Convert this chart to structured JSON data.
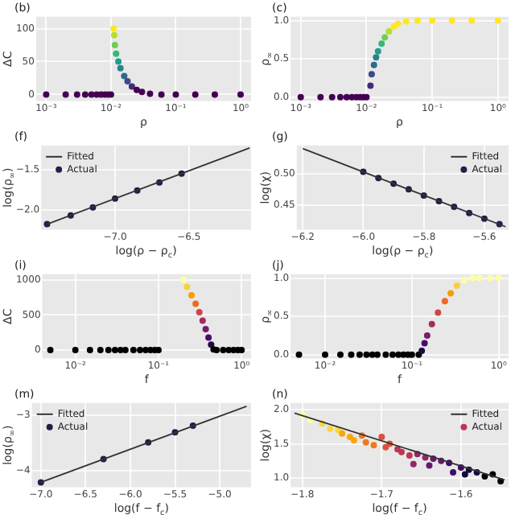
{
  "chart_data": [
    {
      "type": "scatter",
      "title": "(b)",
      "xlabel": "ρ",
      "ylabel": "ΔC",
      "log": "x",
      "grid": true,
      "marker": "circle",
      "xlim": [
        0.0007,
        1.45
      ],
      "xticks": [
        {
          "value": 0.001,
          "label": "10⁻³"
        },
        {
          "value": 0.01,
          "label": "10⁻²"
        },
        {
          "value": 0.1,
          "label": "10⁻¹"
        },
        {
          "value": 1,
          "label": "10⁰"
        }
      ],
      "ylim": [
        -10,
        118
      ],
      "yticks": [
        0,
        50,
        100
      ],
      "x": [
        0.001,
        0.002,
        0.003,
        0.004,
        0.005,
        0.006,
        0.007,
        0.008,
        0.009,
        0.01,
        0.011,
        0.0112,
        0.0115,
        0.012,
        0.013,
        0.014,
        0.016,
        0.018,
        0.021,
        0.025,
        0.03,
        0.04,
        0.06,
        0.1,
        0.2,
        0.4,
        1
      ],
      "values": [
        0,
        0,
        0,
        0,
        0,
        0,
        0,
        0,
        0,
        0,
        100,
        90,
        75,
        62,
        50,
        40,
        28,
        20,
        12,
        7,
        4,
        1,
        0,
        0,
        0,
        0,
        0
      ],
      "colors": [
        "#440154",
        "#440154",
        "#440154",
        "#440154",
        "#440154",
        "#440154",
        "#440154",
        "#440154",
        "#440154",
        "#440154",
        "#fde725",
        "#b5de2b",
        "#6ece58",
        "#35b779",
        "#1f9e89",
        "#26828e",
        "#31688e",
        "#3e4989",
        "#482878",
        "#440154",
        "#440154",
        "#440154",
        "#440154",
        "#440154",
        "#440154",
        "#440154",
        "#440154"
      ]
    },
    {
      "type": "scatter",
      "title": "(c)",
      "xlabel": "ρ",
      "ylabel": "ρ$_{∞}$",
      "log": "x",
      "grid": true,
      "marker": "circle",
      "xlim": [
        0.0007,
        1.45
      ],
      "xticks": [
        {
          "value": 0.001,
          "label": "10⁻³"
        },
        {
          "value": 0.01,
          "label": "10⁻²"
        },
        {
          "value": 0.1,
          "label": "10⁻¹"
        },
        {
          "value": 1,
          "label": "10⁰"
        }
      ],
      "ylim": [
        -0.05,
        1.05
      ],
      "yticks": [
        {
          "value": 0,
          "label": "0.0"
        },
        {
          "value": 0.5,
          "label": "0.5"
        },
        {
          "value": 1,
          "label": "1.0"
        }
      ],
      "x": [
        0.001,
        0.002,
        0.003,
        0.004,
        0.005,
        0.006,
        0.007,
        0.008,
        0.009,
        0.01,
        0.0115,
        0.012,
        0.013,
        0.014,
        0.015,
        0.017,
        0.019,
        0.022,
        0.026,
        0.03,
        0.04,
        0.06,
        0.1,
        0.2,
        0.4,
        1
      ],
      "values": [
        0,
        0,
        0,
        0,
        0,
        0,
        0,
        0,
        0,
        0,
        0.15,
        0.3,
        0.42,
        0.52,
        0.6,
        0.7,
        0.78,
        0.86,
        0.92,
        0.96,
        0.99,
        1,
        1,
        1,
        1,
        1
      ],
      "colors": [
        "#440154",
        "#440154",
        "#440154",
        "#440154",
        "#440154",
        "#440154",
        "#440154",
        "#440154",
        "#440154",
        "#440154",
        "#482878",
        "#3e4989",
        "#31688e",
        "#26828e",
        "#1f9e89",
        "#35b779",
        "#6ece58",
        "#b5de2b",
        "#fde725",
        "#fde725",
        "#fde725",
        "#fde725",
        "#fde725",
        "#fde725",
        "#fde725",
        "#fde725"
      ]
    },
    {
      "type": "scatter",
      "title": "(f)",
      "xlabel": "log(ρ − ρ$_{c}$)",
      "ylabel": "log(ρ$_{∞}$)",
      "grid": true,
      "legend": "top left",
      "marker": "circle",
      "xlim": [
        -7.5,
        -6.08
      ],
      "xticks": [
        {
          "value": -7,
          "label": "−7.0"
        },
        {
          "value": -6.5,
          "label": "−6.5"
        }
      ],
      "ylim": [
        -2.25,
        -1.2
      ],
      "yticks": [
        {
          "value": -2,
          "label": "−2.0"
        },
        {
          "value": -1.5,
          "label": "−1.5"
        }
      ],
      "series": [
        {
          "name": "Fitted",
          "type": "line",
          "marker": "none",
          "color": "#333333",
          "x": [
            -7.46,
            -6.09
          ],
          "values": [
            -2.18,
            -1.23
          ]
        },
        {
          "name": "Actual",
          "type": "scatter",
          "color": "#2b1a4a",
          "x": [
            -7.46,
            -7.3,
            -7.15,
            -7.0,
            -6.85,
            -6.7,
            -6.55
          ],
          "values": [
            -2.18,
            -2.07,
            -1.97,
            -1.86,
            -1.76,
            -1.66,
            -1.55
          ]
        }
      ]
    },
    {
      "type": "scatter",
      "title": "(g)",
      "xlabel": "log(ρ − ρ$_{c}$)",
      "ylabel": "log(χ)",
      "grid": true,
      "legend": "top right",
      "marker": "circle",
      "xlim": [
        -6.22,
        -5.52
      ],
      "xticks": [
        {
          "value": -6.2,
          "label": "−6.2"
        },
        {
          "value": -6,
          "label": "−6.0"
        },
        {
          "value": -5.8,
          "label": "−5.8"
        },
        {
          "value": -5.6,
          "label": "−5.6"
        }
      ],
      "ylim": [
        0.41,
        0.545
      ],
      "yticks": [
        {
          "value": 0.45,
          "label": "0.45"
        },
        {
          "value": 0.5,
          "label": "0.50"
        }
      ],
      "series": [
        {
          "name": "Fitted",
          "type": "line",
          "marker": "none",
          "color": "#333333",
          "x": [
            -6.2,
            -5.53
          ],
          "values": [
            0.54,
            0.415
          ]
        },
        {
          "name": "Actual",
          "type": "scatter",
          "color": "#2b1a4a",
          "x": [
            -6.0,
            -5.95,
            -5.9,
            -5.85,
            -5.8,
            -5.75,
            -5.7,
            -5.65,
            -5.6,
            -5.55
          ],
          "values": [
            0.503,
            0.493,
            0.484,
            0.475,
            0.465,
            0.456,
            0.447,
            0.437,
            0.428,
            0.419
          ]
        }
      ]
    },
    {
      "type": "scatter",
      "title": "(i)",
      "xlabel": "f",
      "ylabel": "ΔC",
      "log": "x",
      "grid": true,
      "marker": "circle",
      "xlim": [
        0.004,
        1.3
      ],
      "xticks": [
        {
          "value": 0.01,
          "label": "10⁻²"
        },
        {
          "value": 0.1,
          "label": "10⁻¹"
        },
        {
          "value": 1,
          "label": "10⁰"
        }
      ],
      "ylim": [
        -120,
        1080
      ],
      "yticks": [
        0,
        500,
        1000
      ],
      "x": [
        0.005,
        0.01,
        0.015,
        0.02,
        0.025,
        0.03,
        0.035,
        0.04,
        0.05,
        0.06,
        0.07,
        0.08,
        0.09,
        0.1,
        0.2,
        0.22,
        0.25,
        0.28,
        0.31,
        0.34,
        0.37,
        0.4,
        0.43,
        0.46,
        0.5,
        0.6,
        0.7,
        0.8,
        0.9,
        1
      ],
      "values": [
        0,
        0,
        0,
        0,
        0,
        0,
        0,
        0,
        0,
        0,
        0,
        0,
        0,
        0,
        1000,
        900,
        780,
        660,
        540,
        420,
        300,
        180,
        80,
        10,
        0,
        0,
        0,
        0,
        0,
        0
      ],
      "colors": [
        "#000004",
        "#000004",
        "#000004",
        "#000004",
        "#000004",
        "#000004",
        "#000004",
        "#000004",
        "#000004",
        "#000004",
        "#000004",
        "#000004",
        "#000004",
        "#000004",
        "#fcffa4",
        "#f7d13d",
        "#fb9b06",
        "#ed6925",
        "#cf4446",
        "#a52c60",
        "#781c6d",
        "#4a0c6b",
        "#1b0c41",
        "#000004",
        "#000004",
        "#000004",
        "#000004",
        "#000004",
        "#000004",
        "#000004"
      ]
    },
    {
      "type": "scatter",
      "title": "(j)",
      "xlabel": "f",
      "ylabel": "ρ$_{∞}$",
      "log": "x",
      "grid": true,
      "marker": "circle",
      "xlim": [
        0.004,
        1.3
      ],
      "xticks": [
        {
          "value": 0.01,
          "label": "10⁻²"
        },
        {
          "value": 0.1,
          "label": "10⁻¹"
        },
        {
          "value": 1,
          "label": "10⁰"
        }
      ],
      "ylim": [
        -0.05,
        1.05
      ],
      "yticks": [
        {
          "value": 0,
          "label": "0.0"
        },
        {
          "value": 0.5,
          "label": "0.5"
        },
        {
          "value": 1,
          "label": "1.0"
        }
      ],
      "x": [
        0.005,
        0.01,
        0.015,
        0.02,
        0.025,
        0.03,
        0.035,
        0.04,
        0.05,
        0.06,
        0.07,
        0.08,
        0.09,
        0.1,
        0.12,
        0.13,
        0.14,
        0.15,
        0.17,
        0.2,
        0.24,
        0.28,
        0.33,
        0.4,
        0.5,
        0.6,
        0.8,
        1
      ],
      "values": [
        0,
        0,
        0,
        0,
        0,
        0,
        0,
        0,
        0,
        0,
        0,
        0,
        0,
        0,
        0,
        0.05,
        0.15,
        0.25,
        0.4,
        0.55,
        0.7,
        0.8,
        0.9,
        0.97,
        1,
        1,
        1,
        1
      ],
      "colors": [
        "#000004",
        "#000004",
        "#000004",
        "#000004",
        "#000004",
        "#000004",
        "#000004",
        "#000004",
        "#000004",
        "#000004",
        "#000004",
        "#000004",
        "#000004",
        "#000004",
        "#000004",
        "#1b0c41",
        "#4a0c6b",
        "#781c6d",
        "#a52c60",
        "#cf4446",
        "#ed6925",
        "#fb9b06",
        "#f7d13d",
        "#fcffa4",
        "#fcffa4",
        "#fcffa4",
        "#fcffa4",
        "#fcffa4"
      ]
    },
    {
      "type": "scatter",
      "title": "(m)",
      "xlabel": "log(f − f$_{c}$)",
      "ylabel": "log(ρ$_{∞}$)",
      "grid": true,
      "legend": "top left",
      "marker": "circle",
      "xlim": [
        -7.1,
        -4.65
      ],
      "xticks": [
        {
          "value": -7,
          "label": "−7.0"
        },
        {
          "value": -6.5,
          "label": "−6.5"
        },
        {
          "value": -6,
          "label": "−6.0"
        },
        {
          "value": -5.5,
          "label": "−5.5"
        },
        {
          "value": -5,
          "label": "−5.0"
        }
      ],
      "ylim": [
        -4.3,
        -2.78
      ],
      "yticks": [
        {
          "value": -4,
          "label": "−4"
        },
        {
          "value": -3,
          "label": "−3"
        }
      ],
      "series": [
        {
          "name": "Fitted",
          "type": "line",
          "marker": "none",
          "color": "#333333",
          "x": [
            -7.0,
            -4.7
          ],
          "values": [
            -4.21,
            -2.84
          ]
        },
        {
          "name": "Actual",
          "type": "scatter",
          "color": "#2b1a4a",
          "x": [
            -7.0,
            -6.3,
            -5.8,
            -5.5,
            -5.3
          ],
          "values": [
            -4.21,
            -3.79,
            -3.49,
            -3.31,
            -3.19
          ]
        }
      ]
    },
    {
      "type": "scatter",
      "title": "(n)",
      "xlabel": "log(f − f$_{c}$)",
      "ylabel": "log(χ)",
      "grid": true,
      "legend": "top right",
      "marker": "circle",
      "xlim": [
        -1.815,
        -1.54
      ],
      "xticks": [
        {
          "value": -1.8,
          "label": "−1.8"
        },
        {
          "value": -1.7,
          "label": "−1.7"
        },
        {
          "value": -1.6,
          "label": "−1.6"
        }
      ],
      "ylim": [
        0.86,
        2.1
      ],
      "yticks": [
        {
          "value": 1,
          "label": "1.0"
        },
        {
          "value": 1.5,
          "label": "1.5"
        },
        {
          "value": 2,
          "label": "2.0"
        }
      ],
      "series": [
        {
          "name": "Fitted",
          "type": "line",
          "marker": "none",
          "color": "#333333",
          "x": [
            -1.81,
            -1.545
          ],
          "values": [
            1.95,
            0.97
          ]
        },
        {
          "name": "Actual",
          "type": "scatter",
          "x": [
            -1.8,
            -1.79,
            -1.775,
            -1.765,
            -1.755,
            -1.75,
            -1.74,
            -1.735,
            -1.725,
            -1.72,
            -1.71,
            -1.7,
            -1.695,
            -1.69,
            -1.68,
            -1.675,
            -1.665,
            -1.66,
            -1.655,
            -1.645,
            -1.64,
            -1.635,
            -1.625,
            -1.615,
            -1.61,
            -1.6,
            -1.595,
            -1.59,
            -1.58,
            -1.57,
            -1.56,
            -1.55
          ],
          "values": [
            1.92,
            1.85,
            1.8,
            1.72,
            1.7,
            1.65,
            1.6,
            1.55,
            1.62,
            1.52,
            1.48,
            1.6,
            1.45,
            1.5,
            1.42,
            1.38,
            1.33,
            1.2,
            1.35,
            1.3,
            1.18,
            1.28,
            1.25,
            1.22,
            1.08,
            1.15,
            1.05,
            1.12,
            1.08,
            1.02,
            1.05,
            0.95
          ],
          "colors": [
            "#fcffa4",
            "#fcffa4",
            "#f6d746",
            "#f6d746",
            "#f6d746",
            "#fca50a",
            "#fca50a",
            "#fca50a",
            "#f37819",
            "#f37819",
            "#f37819",
            "#dd513a",
            "#dd513a",
            "#dd513a",
            "#bc3754",
            "#bc3754",
            "#bc3754",
            "#932667",
            "#932667",
            "#932667",
            "#6a176e",
            "#6a176e",
            "#6a176e",
            "#420a68",
            "#420a68",
            "#420a68",
            "#160b39",
            "#160b39",
            "#160b39",
            "#000004",
            "#000004",
            "#000004"
          ]
        }
      ]
    }
  ]
}
